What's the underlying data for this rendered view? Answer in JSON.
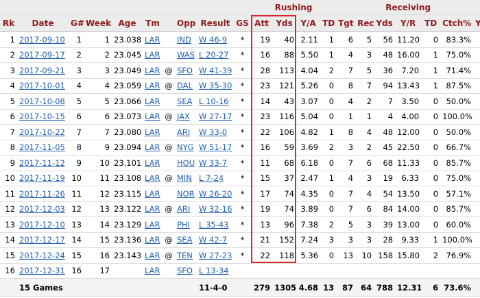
{
  "group_headers": [
    "Rushing",
    "Receiving"
  ],
  "columns": [
    "Rk",
    "Date",
    "G#",
    "Week",
    "Age",
    "Tm",
    null,
    "Opp",
    "Result",
    "GS",
    "Att",
    "Yds",
    "Y/A",
    "TD",
    "Tgt",
    "Rec",
    "Yds",
    "Y/R",
    "TD",
    "Ctch%",
    "Y"
  ],
  "rows": [
    [
      "1",
      "2017-09-10",
      "1",
      "1",
      "23.038",
      "LAR",
      null,
      "IND",
      "W 46-9",
      "*",
      "19",
      "40",
      "2.11",
      "1",
      "6",
      "5",
      "56",
      "11.20",
      "0",
      "83.3%",
      null
    ],
    [
      "2",
      "2017-09-17",
      "2",
      "2",
      "23.045",
      "LAR",
      null,
      "WAS",
      "L 20-27",
      "*",
      "16",
      "88",
      "5.50",
      "1",
      "4",
      "3",
      "48",
      "16.00",
      "1",
      "75.0%",
      null
    ],
    [
      "3",
      "2017-09-21",
      "3",
      "3",
      "23.049",
      "LAR",
      "@",
      "SFO",
      "W 41-39",
      "*",
      "28",
      "113",
      "4.04",
      "2",
      "7",
      "5",
      "36",
      "7.20",
      "1",
      "71.4%",
      null
    ],
    [
      "4",
      "2017-10-01",
      "4",
      "4",
      "23.059",
      "LAR",
      "@",
      "DAL",
      "W 35-30",
      "*",
      "23",
      "121",
      "5.26",
      "0",
      "8",
      "7",
      "94",
      "13.43",
      "1",
      "87.5%",
      null
    ],
    [
      "5",
      "2017-10-08",
      "5",
      "5",
      "23.066",
      "LAR",
      null,
      "SEA",
      "L 10-16",
      "*",
      "14",
      "43",
      "3.07",
      "0",
      "4",
      "2",
      "7",
      "3.50",
      "0",
      "50.0%",
      null
    ],
    [
      "6",
      "2017-10-15",
      "6",
      "6",
      "23.073",
      "LAR",
      "@",
      "JAX",
      "W 27-17",
      "*",
      "23",
      "116",
      "5.04",
      "0",
      "1",
      "1",
      "4",
      "4.00",
      "0",
      "100.0%",
      null
    ],
    [
      "7",
      "2017-10-22",
      "7",
      "7",
      "23.080",
      "LAR",
      null,
      "ARI",
      "W 33-0",
      "*",
      "22",
      "106",
      "4.82",
      "1",
      "8",
      "4",
      "48",
      "12.00",
      "0",
      "50.0%",
      null
    ],
    [
      "8",
      "2017-11-05",
      "8",
      "9",
      "23.094",
      "LAR",
      "@",
      "NYG",
      "W 51-17",
      "*",
      "16",
      "59",
      "3.69",
      "2",
      "3",
      "2",
      "45",
      "22.50",
      "0",
      "66.7%",
      null
    ],
    [
      "9",
      "2017-11-12",
      "9",
      "10",
      "23.101",
      "LAR",
      null,
      "HOU",
      "W 33-7",
      "*",
      "11",
      "68",
      "6.18",
      "0",
      "7",
      "6",
      "68",
      "11.33",
      "0",
      "85.7%",
      null
    ],
    [
      "10",
      "2017-11-19",
      "10",
      "11",
      "23.108",
      "LAR",
      "@",
      "MIN",
      "L 7-24",
      "*",
      "15",
      "37",
      "2.47",
      "1",
      "4",
      "3",
      "19",
      "6.33",
      "0",
      "75.0%",
      null
    ],
    [
      "11",
      "2017-11-26",
      "11",
      "12",
      "23.115",
      "LAR",
      null,
      "NOR",
      "W 26-20",
      "*",
      "17",
      "74",
      "4.35",
      "0",
      "7",
      "4",
      "54",
      "13.50",
      "0",
      "57.1%",
      null
    ],
    [
      "12",
      "2017-12-03",
      "12",
      "13",
      "23.122",
      "LAR",
      "@",
      "ARI",
      "W 32-16",
      "*",
      "19",
      "74",
      "3.89",
      "0",
      "7",
      "6",
      "84",
      "14.00",
      "0",
      "85.7%",
      null
    ],
    [
      "13",
      "2017-12-10",
      "13",
      "14",
      "23.129",
      "LAR",
      null,
      "PHI",
      "L 35-43",
      "*",
      "13",
      "96",
      "7.38",
      "2",
      "5",
      "3",
      "39",
      "13.00",
      "0",
      "60.0%",
      null
    ],
    [
      "14",
      "2017-12-17",
      "14",
      "15",
      "23.136",
      "LAR",
      "@",
      "SEA",
      "W 42-7",
      "*",
      "21",
      "152",
      "7.24",
      "3",
      "3",
      "3",
      "28",
      "9.33",
      "1",
      "100.0%",
      null
    ],
    [
      "15",
      "2017-12-24",
      "15",
      "16",
      "23.143",
      "LAR",
      "@",
      "TEN",
      "W 27-23",
      "*",
      "22",
      "118",
      "5.36",
      "0",
      "13",
      "10",
      "158",
      "15.80",
      "2",
      "76.9%",
      null
    ],
    [
      "16",
      "2017-12-31",
      "16",
      "17",
      null,
      "LAR",
      null,
      "SFO",
      "L 13-34",
      null,
      null,
      null,
      null,
      null,
      null,
      null,
      null,
      null,
      null,
      null,
      null
    ]
  ],
  "footer": [
    null,
    "15 Games",
    null,
    null,
    null,
    null,
    null,
    null,
    "11-4-0",
    null,
    "279",
    "1305",
    "4.68",
    "13",
    "87",
    "64",
    "788",
    "12.31",
    "6",
    "73.6%",
    null
  ]
}
